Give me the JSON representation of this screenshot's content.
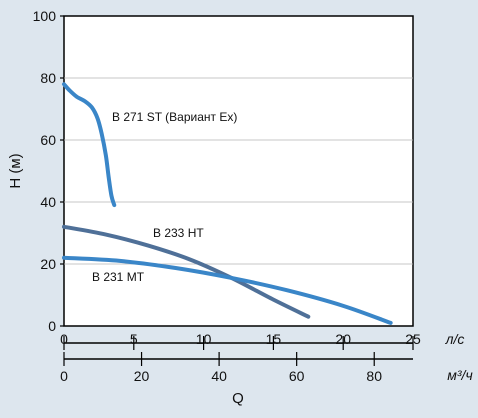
{
  "chart_data": {
    "type": "line",
    "ylabel": "H (м)",
    "xlabel": "Q",
    "ylim": [
      0,
      100
    ],
    "yticks": [
      0,
      20,
      40,
      60,
      80,
      100
    ],
    "xlim_ls": [
      0,
      25
    ],
    "xticks_ls": [
      0,
      5,
      10,
      15,
      20,
      25
    ],
    "x_unit_ls": "л/с",
    "xticks_m3h": [
      0,
      20,
      40,
      60,
      80
    ],
    "x_unit_m3h": "м³/ч",
    "grid": "horizontal",
    "series": [
      {
        "name": "B 271 ST (Вариант Ex)",
        "color": "#3a86c8",
        "x": [
          0,
          0.4,
          0.9,
          1.5,
          2.0,
          2.4,
          2.7,
          3.0,
          3.2,
          3.4,
          3.6
        ],
        "y": [
          78,
          76,
          74,
          72.5,
          70.5,
          67,
          62,
          55,
          48,
          42,
          39
        ]
      },
      {
        "name": "B 233 HT",
        "color": "#4f7098",
        "x": [
          0,
          3,
          6,
          9,
          12,
          15,
          17.5
        ],
        "y": [
          32,
          29.5,
          26,
          21.5,
          15.5,
          8.5,
          3
        ]
      },
      {
        "name": "B 231 MT",
        "color": "#3a86c8",
        "x": [
          0,
          4,
          8,
          12,
          16,
          20,
          23.4
        ],
        "y": [
          22,
          21,
          18.7,
          15.5,
          11.5,
          6.5,
          1
        ]
      }
    ]
  }
}
